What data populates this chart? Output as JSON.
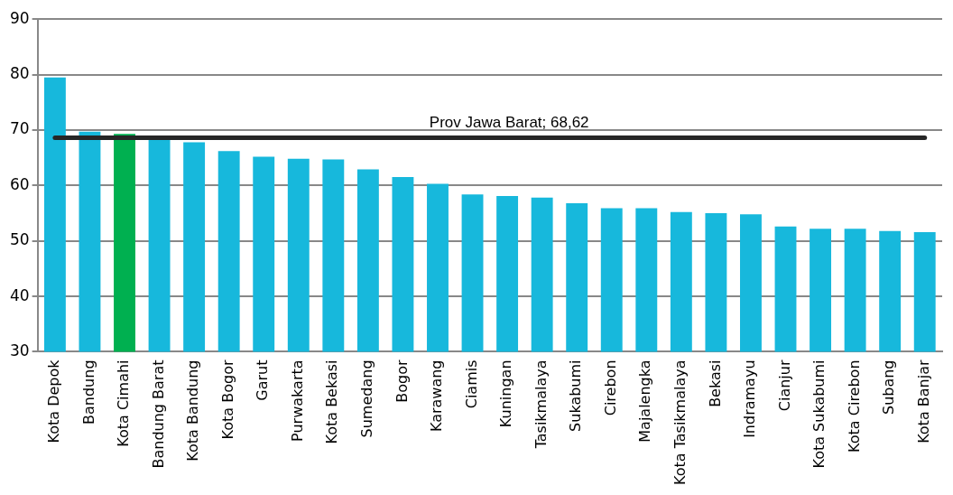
{
  "chart_data": {
    "type": "bar",
    "categories": [
      "Kota Depok",
      "Bandung",
      "Kota Cimahi",
      "Bandung Barat",
      "Kota Bandung",
      "Kota Bogor",
      "Garut",
      "Purwakarta",
      "Kota Bekasi",
      "Sumedang",
      "Bogor",
      "Karawang",
      "Ciamis",
      "Kuningan",
      "Tasikmalaya",
      "Sukabumi",
      "Cirebon",
      "Majalengka",
      "Kota Tasikmalaya",
      "Bekasi",
      "Indramayu",
      "Cianjur",
      "Kota Sukabumi",
      "Kota Cirebon",
      "Subang",
      "Kota Banjar"
    ],
    "values": [
      79.5,
      69.7,
      69.3,
      68.4,
      67.8,
      66.2,
      65.2,
      64.8,
      64.7,
      62.9,
      61.5,
      60.3,
      58.4,
      58.1,
      57.8,
      56.8,
      55.9,
      55.9,
      55.2,
      55.0,
      54.8,
      52.6,
      52.2,
      52.2,
      51.8,
      51.6
    ],
    "colors": [
      "#17b8dc",
      "#17b8dc",
      "#00b050",
      "#17b8dc",
      "#17b8dc",
      "#17b8dc",
      "#17b8dc",
      "#17b8dc",
      "#17b8dc",
      "#17b8dc",
      "#17b8dc",
      "#17b8dc",
      "#17b8dc",
      "#17b8dc",
      "#17b8dc",
      "#17b8dc",
      "#17b8dc",
      "#17b8dc",
      "#17b8dc",
      "#17b8dc",
      "#17b8dc",
      "#17b8dc",
      "#17b8dc",
      "#17b8dc",
      "#17b8dc",
      "#17b8dc"
    ],
    "ylim": [
      30,
      90
    ],
    "yticks": [
      30,
      40,
      50,
      60,
      70,
      80,
      90
    ],
    "grid": "y",
    "ref_lines": [
      {
        "axis": "y",
        "value": 68.62,
        "label": "Prov Jawa Barat; 68,62",
        "color": "#262626"
      }
    ]
  }
}
